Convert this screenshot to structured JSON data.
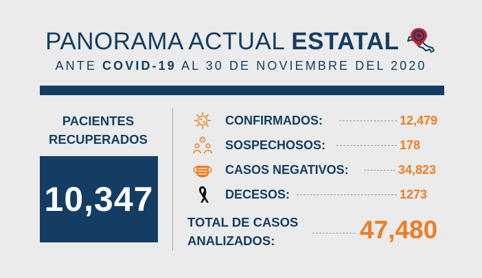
{
  "header": {
    "title_light": "PANORAMA ACTUAL",
    "title_bold": "ESTATAL",
    "subtitle_pre": "ANTE",
    "subtitle_bold": "COVID-19",
    "subtitle_post": "AL 30 DE NOVIEMBRE DEL 2020"
  },
  "recovered": {
    "label_line1": "PACIENTES",
    "label_line2": "RECUPERADOS",
    "value": "10,347"
  },
  "stats": [
    {
      "icon": "virus-icon",
      "label": "CONFIRMADOS:",
      "value": "12,479"
    },
    {
      "icon": "suspects-icon",
      "label": "SOSPECHOSOS:",
      "value": "178"
    },
    {
      "icon": "mask-icon",
      "label": "CASOS NEGATIVOS:",
      "value": "34,823"
    },
    {
      "icon": "mourning-ribbon-icon",
      "label": "DECESOS:",
      "value": "1273"
    }
  ],
  "total": {
    "label_line1": "TOTAL DE CASOS",
    "label_line2": "ANALIZADOS:",
    "value": "47,480"
  },
  "colors": {
    "navy": "#143d64",
    "orange": "#ee7d22",
    "background": "#ebebeb",
    "map_pin": "#c8202f"
  }
}
